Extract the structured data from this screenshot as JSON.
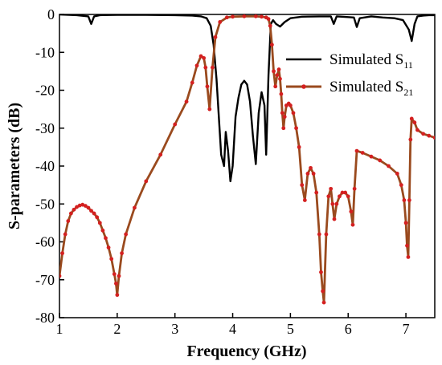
{
  "chart_data": {
    "type": "line",
    "title": "",
    "xlabel": "Frequency (GHz)",
    "ylabel": "S-parameters (dB)",
    "xlim": [
      1,
      7.5
    ],
    "ylim": [
      -80,
      0
    ],
    "xticks": [
      1,
      2,
      3,
      4,
      5,
      6,
      7
    ],
    "yticks": [
      0,
      -10,
      -20,
      -30,
      -40,
      -50,
      -60,
      -70,
      -80
    ],
    "grid": false,
    "legend_position": "right",
    "series": [
      {
        "name": "Simulated S",
        "name_sub": "11",
        "color": "#000000",
        "marker": "none",
        "x": [
          1.0,
          1.3,
          1.5,
          1.55,
          1.6,
          1.7,
          2.0,
          2.5,
          3.0,
          3.3,
          3.45,
          3.55,
          3.62,
          3.67,
          3.72,
          3.76,
          3.8,
          3.85,
          3.88,
          3.92,
          3.96,
          4.0,
          4.05,
          4.1,
          4.15,
          4.2,
          4.25,
          4.3,
          4.35,
          4.4,
          4.45,
          4.5,
          4.55,
          4.58,
          4.62,
          4.66,
          4.7,
          4.75,
          4.82,
          4.9,
          5.0,
          5.2,
          5.5,
          5.7,
          5.75,
          5.8,
          6.0,
          6.1,
          6.15,
          6.2,
          6.4,
          6.6,
          6.8,
          6.95,
          7.05,
          7.1,
          7.15,
          7.2,
          7.3,
          7.4,
          7.5
        ],
        "y": [
          0,
          -0.2,
          -0.5,
          -2.5,
          -0.5,
          -0.2,
          -0.1,
          -0.1,
          -0.2,
          -0.3,
          -0.5,
          -1,
          -3,
          -8,
          -17,
          -27,
          -37,
          -40,
          -31,
          -36,
          -44,
          -40,
          -27,
          -22,
          -18.5,
          -17.5,
          -18.5,
          -23,
          -32,
          -39.5,
          -26,
          -20.5,
          -24,
          -37,
          -16,
          -2.5,
          -1.5,
          -2.5,
          -3.2,
          -2,
          -1,
          -0.6,
          -0.5,
          -0.5,
          -2.5,
          -0.5,
          -0.7,
          -0.8,
          -3.3,
          -1,
          -0.5,
          -0.8,
          -1,
          -1.5,
          -4,
          -7,
          -2.5,
          -0.5,
          -0.3,
          -0.2,
          -0.2
        ]
      },
      {
        "name": "Simulated S",
        "name_sub": "21",
        "color": "#9a4a1e",
        "marker": "circle",
        "marker_color": "#d42020",
        "x": [
          1.0,
          1.05,
          1.1,
          1.15,
          1.2,
          1.25,
          1.3,
          1.35,
          1.4,
          1.45,
          1.5,
          1.55,
          1.6,
          1.65,
          1.7,
          1.75,
          1.8,
          1.85,
          1.9,
          1.95,
          1.98,
          2.0,
          2.03,
          2.08,
          2.15,
          2.3,
          2.5,
          2.75,
          3.0,
          3.2,
          3.3,
          3.38,
          3.45,
          3.5,
          3.53,
          3.56,
          3.6,
          3.65,
          3.7,
          3.78,
          3.9,
          4.0,
          4.2,
          4.4,
          4.5,
          4.58,
          4.62,
          4.65,
          4.68,
          4.71,
          4.74,
          4.77,
          4.8,
          4.82,
          4.84,
          4.86,
          4.88,
          4.9,
          4.93,
          4.97,
          5.0,
          5.05,
          5.1,
          5.15,
          5.2,
          5.25,
          5.3,
          5.35,
          5.4,
          5.45,
          5.5,
          5.53,
          5.56,
          5.58,
          5.62,
          5.66,
          5.7,
          5.73,
          5.76,
          5.8,
          5.85,
          5.9,
          5.95,
          6.0,
          6.05,
          6.08,
          6.11,
          6.15,
          6.25,
          6.4,
          6.55,
          6.7,
          6.85,
          6.92,
          6.97,
          7.0,
          7.02,
          7.04,
          7.06,
          7.08,
          7.1,
          7.15,
          7.2,
          7.3,
          7.4,
          7.5
        ],
        "y": [
          -69,
          -63,
          -58,
          -54.5,
          -52.5,
          -51.5,
          -50.8,
          -50.4,
          -50.2,
          -50.5,
          -51,
          -51.8,
          -52.5,
          -53.5,
          -55,
          -57,
          -59,
          -61.5,
          -64.5,
          -68.5,
          -71,
          -74,
          -69,
          -63,
          -58,
          -51,
          -44,
          -37,
          -29,
          -23,
          -18,
          -13.5,
          -11,
          -11.5,
          -14,
          -19,
          -25,
          -14,
          -6,
          -2,
          -0.8,
          -0.6,
          -0.5,
          -0.5,
          -0.6,
          -0.8,
          -1.2,
          -3,
          -8,
          -15,
          -19,
          -16,
          -14.5,
          -17,
          -21,
          -26,
          -30,
          -27,
          -24,
          -23.5,
          -24,
          -26,
          -30,
          -35,
          -45,
          -49,
          -42,
          -40.5,
          -42,
          -47,
          -58,
          -68,
          -73,
          -76,
          -58,
          -48,
          -46,
          -50,
          -54,
          -50,
          -48,
          -47,
          -47,
          -48,
          -52,
          -55.5,
          -46,
          -36,
          -36.5,
          -37.5,
          -38.5,
          -40,
          -42,
          -45,
          -49,
          -55,
          -61,
          -64,
          -49,
          -33,
          -27.5,
          -28.5,
          -30.5,
          -31.5,
          -32,
          -32.5
        ]
      }
    ]
  }
}
